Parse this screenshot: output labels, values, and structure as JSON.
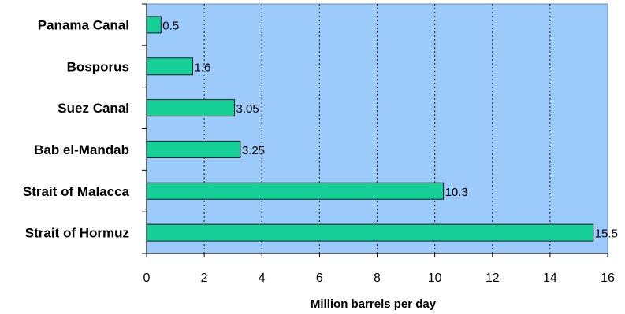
{
  "chart_data": {
    "type": "bar",
    "orientation": "horizontal",
    "categories": [
      "Panama Canal",
      "Bosporus",
      "Suez Canal",
      "Bab el-Mandab",
      "Strait of Malacca",
      "Strait of Hormuz"
    ],
    "values": [
      0.5,
      1.6,
      3.05,
      3.25,
      10.3,
      15.5
    ],
    "value_labels": [
      "0.5",
      "1.6",
      "3.05",
      "3.25",
      "10.3",
      "15.5"
    ],
    "xlabel": "Million barrels per day",
    "ylabel": "",
    "xlim": [
      0,
      16
    ],
    "xticks": [
      "0",
      "2",
      "4",
      "6",
      "8",
      "10",
      "12",
      "14",
      "16"
    ],
    "grid": "vertical dotted",
    "legend": "none",
    "colors": {
      "plot_background": "#9ccafa",
      "bar_fill": "#14cf96",
      "bar_stroke": "#1a1a1a",
      "grid": "#333333"
    }
  }
}
